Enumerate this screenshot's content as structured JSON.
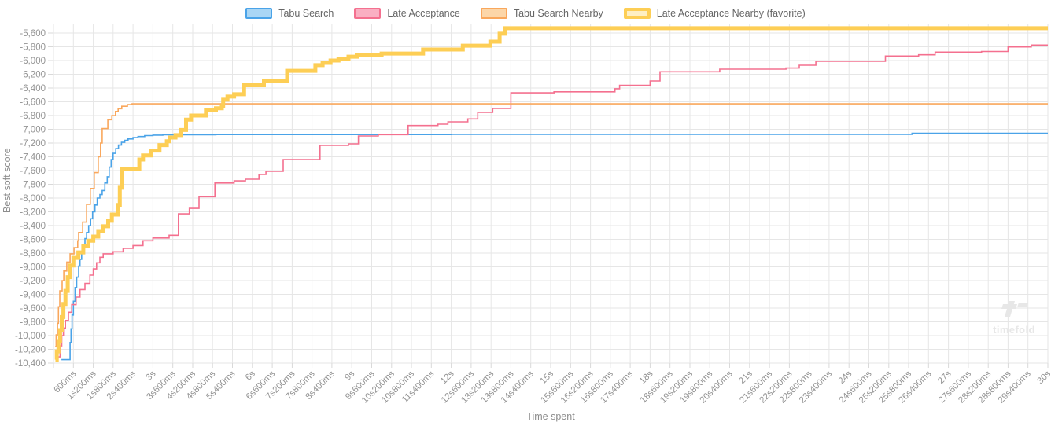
{
  "watermark": {
    "text": "timefold"
  },
  "chart_data": {
    "type": "line",
    "step": true,
    "title": "",
    "xlabel": "Time spent",
    "ylabel": "Best soft score",
    "x_range_ms": [
      0,
      30000
    ],
    "y_range": [
      -10400,
      -5600
    ],
    "grid": true,
    "legend_position": "top",
    "y_ticks": [
      {
        "value": -5600,
        "label": "-5,600"
      },
      {
        "value": -5800,
        "label": "-5,800"
      },
      {
        "value": -6000,
        "label": "-6,000"
      },
      {
        "value": -6200,
        "label": "-6,200"
      },
      {
        "value": -6400,
        "label": "-6,400"
      },
      {
        "value": -6600,
        "label": "-6,600"
      },
      {
        "value": -6800,
        "label": "-6,800"
      },
      {
        "value": -7000,
        "label": "-7,000"
      },
      {
        "value": -7200,
        "label": "-7,200"
      },
      {
        "value": -7400,
        "label": "-7,400"
      },
      {
        "value": -7600,
        "label": "-7,600"
      },
      {
        "value": -7800,
        "label": "-7,800"
      },
      {
        "value": -8000,
        "label": "-8,000"
      },
      {
        "value": -8200,
        "label": "-8,200"
      },
      {
        "value": -8400,
        "label": "-8,400"
      },
      {
        "value": -8600,
        "label": "-8,600"
      },
      {
        "value": -8800,
        "label": "-8,800"
      },
      {
        "value": -9000,
        "label": "-9,000"
      },
      {
        "value": -9200,
        "label": "-9,200"
      },
      {
        "value": -9400,
        "label": "-9,400"
      },
      {
        "value": -9600,
        "label": "-9,600"
      },
      {
        "value": -9800,
        "label": "-9,800"
      },
      {
        "value": -10000,
        "label": "-10,000"
      },
      {
        "value": -10200,
        "label": "-10,200"
      },
      {
        "value": -10400,
        "label": "-10,400"
      }
    ],
    "x_ticks": [
      {
        "ms": 600,
        "label": "600ms"
      },
      {
        "ms": 1200,
        "label": "1s200ms"
      },
      {
        "ms": 1800,
        "label": "1s800ms"
      },
      {
        "ms": 2400,
        "label": "2s400ms"
      },
      {
        "ms": 3000,
        "label": "3s"
      },
      {
        "ms": 3600,
        "label": "3s600ms"
      },
      {
        "ms": 4200,
        "label": "4s200ms"
      },
      {
        "ms": 4800,
        "label": "4s800ms"
      },
      {
        "ms": 5400,
        "label": "5s400ms"
      },
      {
        "ms": 6000,
        "label": "6s"
      },
      {
        "ms": 6600,
        "label": "6s600ms"
      },
      {
        "ms": 7200,
        "label": "7s200ms"
      },
      {
        "ms": 7800,
        "label": "7s800ms"
      },
      {
        "ms": 8400,
        "label": "8s400ms"
      },
      {
        "ms": 9000,
        "label": "9s"
      },
      {
        "ms": 9600,
        "label": "9s600ms"
      },
      {
        "ms": 10200,
        "label": "10s200ms"
      },
      {
        "ms": 10800,
        "label": "10s800ms"
      },
      {
        "ms": 11400,
        "label": "11s400ms"
      },
      {
        "ms": 12000,
        "label": "12s"
      },
      {
        "ms": 12600,
        "label": "12s600ms"
      },
      {
        "ms": 13200,
        "label": "13s200ms"
      },
      {
        "ms": 13800,
        "label": "13s800ms"
      },
      {
        "ms": 14400,
        "label": "14s400ms"
      },
      {
        "ms": 15000,
        "label": "15s"
      },
      {
        "ms": 15600,
        "label": "15s600ms"
      },
      {
        "ms": 16200,
        "label": "16s200ms"
      },
      {
        "ms": 16800,
        "label": "16s800ms"
      },
      {
        "ms": 17400,
        "label": "17s400ms"
      },
      {
        "ms": 18000,
        "label": "18s"
      },
      {
        "ms": 18600,
        "label": "18s600ms"
      },
      {
        "ms": 19200,
        "label": "19s200ms"
      },
      {
        "ms": 19800,
        "label": "19s800ms"
      },
      {
        "ms": 20400,
        "label": "20s400ms"
      },
      {
        "ms": 21000,
        "label": "21s"
      },
      {
        "ms": 21600,
        "label": "21s600ms"
      },
      {
        "ms": 22200,
        "label": "22s200ms"
      },
      {
        "ms": 22800,
        "label": "22s800ms"
      },
      {
        "ms": 23400,
        "label": "23s400ms"
      },
      {
        "ms": 24000,
        "label": "24s"
      },
      {
        "ms": 24600,
        "label": "24s600ms"
      },
      {
        "ms": 25200,
        "label": "25s200ms"
      },
      {
        "ms": 25800,
        "label": "25s800ms"
      },
      {
        "ms": 26400,
        "label": "26s400ms"
      },
      {
        "ms": 27000,
        "label": "27s"
      },
      {
        "ms": 27600,
        "label": "27s600ms"
      },
      {
        "ms": 28200,
        "label": "28s200ms"
      },
      {
        "ms": 28800,
        "label": "28s800ms"
      },
      {
        "ms": 29400,
        "label": "29s400ms"
      },
      {
        "ms": 30000,
        "label": "30s"
      }
    ],
    "series": [
      {
        "name": "Tabu Search",
        "color": "#4AA3E8",
        "fill": "#A9D6F5",
        "width": 1.6,
        "favorite": false,
        "points": [
          [
            240,
            -10350
          ],
          [
            470,
            -10350
          ],
          [
            500,
            -10100
          ],
          [
            530,
            -9900
          ],
          [
            560,
            -9700
          ],
          [
            600,
            -9500
          ],
          [
            650,
            -9300
          ],
          [
            700,
            -9150
          ],
          [
            760,
            -8990
          ],
          [
            800,
            -8890
          ],
          [
            850,
            -8790
          ],
          [
            900,
            -8690
          ],
          [
            950,
            -8590
          ],
          [
            1000,
            -8500
          ],
          [
            1060,
            -8400
          ],
          [
            1120,
            -8300
          ],
          [
            1180,
            -8200
          ],
          [
            1250,
            -8100
          ],
          [
            1320,
            -8000
          ],
          [
            1400,
            -7950
          ],
          [
            1470,
            -7890
          ],
          [
            1550,
            -7780
          ],
          [
            1620,
            -7690
          ],
          [
            1680,
            -7550
          ],
          [
            1740,
            -7440
          ],
          [
            1800,
            -7350
          ],
          [
            1880,
            -7280
          ],
          [
            1960,
            -7230
          ],
          [
            2050,
            -7190
          ],
          [
            2150,
            -7160
          ],
          [
            2250,
            -7140
          ],
          [
            2400,
            -7120
          ],
          [
            2550,
            -7105
          ],
          [
            2750,
            -7092
          ],
          [
            3000,
            -7085
          ],
          [
            3300,
            -7080
          ],
          [
            4900,
            -7076
          ],
          [
            12000,
            -7073
          ],
          [
            25900,
            -7058
          ],
          [
            30000,
            -7058
          ]
        ]
      },
      {
        "name": "Late Acceptance",
        "color": "#F4708F",
        "fill": "#FAAFC2",
        "width": 1.6,
        "favorite": false,
        "points": [
          [
            150,
            -10310
          ],
          [
            200,
            -10150
          ],
          [
            250,
            -10000
          ],
          [
            300,
            -9890
          ],
          [
            360,
            -9780
          ],
          [
            450,
            -9660
          ],
          [
            550,
            -9550
          ],
          [
            680,
            -9440
          ],
          [
            800,
            -9330
          ],
          [
            950,
            -9240
          ],
          [
            1100,
            -9120
          ],
          [
            1200,
            -9030
          ],
          [
            1300,
            -8940
          ],
          [
            1400,
            -8860
          ],
          [
            1500,
            -8810
          ],
          [
            1800,
            -8780
          ],
          [
            2100,
            -8730
          ],
          [
            2400,
            -8690
          ],
          [
            2700,
            -8620
          ],
          [
            3000,
            -8580
          ],
          [
            3490,
            -8540
          ],
          [
            3770,
            -8230
          ],
          [
            4100,
            -8150
          ],
          [
            4390,
            -7980
          ],
          [
            4870,
            -7780
          ],
          [
            5450,
            -7750
          ],
          [
            5790,
            -7726
          ],
          [
            6200,
            -7657
          ],
          [
            6410,
            -7611
          ],
          [
            6930,
            -7440
          ],
          [
            8040,
            -7234
          ],
          [
            8900,
            -7211
          ],
          [
            9200,
            -7097
          ],
          [
            9800,
            -7078
          ],
          [
            10700,
            -6945
          ],
          [
            11600,
            -6926
          ],
          [
            11900,
            -6891
          ],
          [
            12500,
            -6849
          ],
          [
            12800,
            -6754
          ],
          [
            13250,
            -6697
          ],
          [
            13800,
            -6470
          ],
          [
            15100,
            -6455
          ],
          [
            16940,
            -6410
          ],
          [
            17080,
            -6360
          ],
          [
            18000,
            -6297
          ],
          [
            18300,
            -6163
          ],
          [
            20100,
            -6126
          ],
          [
            22100,
            -6110
          ],
          [
            22500,
            -6069
          ],
          [
            23000,
            -6011
          ],
          [
            25100,
            -5935
          ],
          [
            26100,
            -5917
          ],
          [
            26600,
            -5878
          ],
          [
            28000,
            -5868
          ],
          [
            28800,
            -5802
          ],
          [
            29500,
            -5775
          ],
          [
            30000,
            -5775
          ]
        ]
      },
      {
        "name": "Tabu Search Nearby",
        "color": "#F9A75C",
        "fill": "#FCD6A8",
        "width": 1.6,
        "favorite": false,
        "points": [
          [
            50,
            -10160
          ],
          [
            80,
            -9990
          ],
          [
            120,
            -9820
          ],
          [
            150,
            -9580
          ],
          [
            190,
            -9350
          ],
          [
            260,
            -9200
          ],
          [
            310,
            -9060
          ],
          [
            400,
            -8930
          ],
          [
            500,
            -8810
          ],
          [
            620,
            -8720
          ],
          [
            730,
            -8620
          ],
          [
            760,
            -8500
          ],
          [
            880,
            -8350
          ],
          [
            1000,
            -8090
          ],
          [
            1110,
            -7860
          ],
          [
            1230,
            -7630
          ],
          [
            1350,
            -7400
          ],
          [
            1420,
            -7200
          ],
          [
            1470,
            -6990
          ],
          [
            1640,
            -6860
          ],
          [
            1760,
            -6800
          ],
          [
            1870,
            -6740
          ],
          [
            1950,
            -6700
          ],
          [
            2060,
            -6665
          ],
          [
            2230,
            -6640
          ],
          [
            2370,
            -6630
          ],
          [
            30000,
            -6630
          ]
        ]
      },
      {
        "name": "Late Acceptance Nearby (favorite)",
        "color": "#FDCE55",
        "fill": "#FEEFC3",
        "width": 5,
        "favorite": true,
        "points": [
          [
            60,
            -10350
          ],
          [
            100,
            -10230
          ],
          [
            150,
            -10080
          ],
          [
            200,
            -9920
          ],
          [
            250,
            -9730
          ],
          [
            300,
            -9540
          ],
          [
            360,
            -9350
          ],
          [
            430,
            -9150
          ],
          [
            500,
            -8980
          ],
          [
            600,
            -8870
          ],
          [
            750,
            -8790
          ],
          [
            900,
            -8700
          ],
          [
            1050,
            -8620
          ],
          [
            1200,
            -8560
          ],
          [
            1350,
            -8480
          ],
          [
            1500,
            -8410
          ],
          [
            1650,
            -8330
          ],
          [
            1760,
            -8240
          ],
          [
            1950,
            -8100
          ],
          [
            2000,
            -7850
          ],
          [
            2060,
            -7580
          ],
          [
            2590,
            -7440
          ],
          [
            2700,
            -7380
          ],
          [
            2950,
            -7310
          ],
          [
            3200,
            -7230
          ],
          [
            3420,
            -7175
          ],
          [
            3500,
            -7120
          ],
          [
            3680,
            -7085
          ],
          [
            3850,
            -7010
          ],
          [
            4000,
            -6860
          ],
          [
            4150,
            -6800
          ],
          [
            4600,
            -6720
          ],
          [
            4900,
            -6695
          ],
          [
            5080,
            -6660
          ],
          [
            5120,
            -6570
          ],
          [
            5250,
            -6525
          ],
          [
            5450,
            -6490
          ],
          [
            5750,
            -6360
          ],
          [
            6350,
            -6298
          ],
          [
            7050,
            -6150
          ],
          [
            7900,
            -6068
          ],
          [
            8120,
            -6034
          ],
          [
            8360,
            -6000
          ],
          [
            8600,
            -5976
          ],
          [
            8900,
            -5944
          ],
          [
            9150,
            -5920
          ],
          [
            9900,
            -5898
          ],
          [
            11150,
            -5840
          ],
          [
            12350,
            -5784
          ],
          [
            13180,
            -5726
          ],
          [
            13460,
            -5610
          ],
          [
            13620,
            -5530
          ],
          [
            30000,
            -5530
          ]
        ]
      }
    ]
  }
}
